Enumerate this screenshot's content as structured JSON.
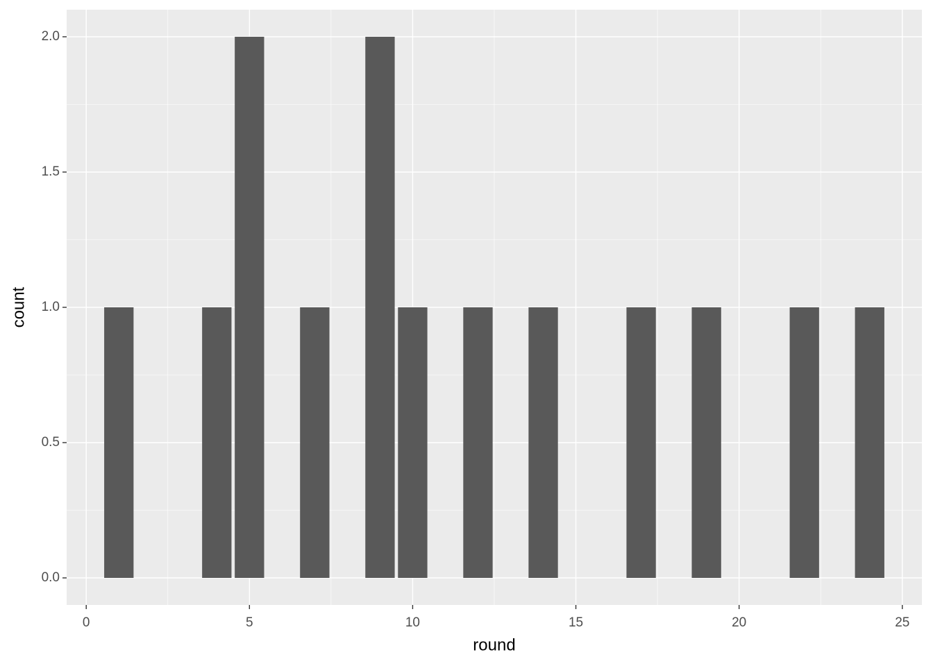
{
  "chart_data": {
    "type": "bar",
    "x": [
      1,
      4,
      5,
      7,
      9,
      10,
      12,
      14,
      17,
      19,
      22,
      24
    ],
    "values": [
      1,
      1,
      2,
      1,
      2,
      1,
      1,
      1,
      1,
      1,
      1,
      1
    ],
    "color": "#595959",
    "x_label": "round",
    "y_label": "count",
    "xlim": [
      -0.6,
      25.6
    ],
    "xticks": [
      0,
      5,
      10,
      15,
      20,
      25
    ],
    "ylim": [
      -0.1,
      2.1
    ],
    "yticks": [
      {
        "value": 0,
        "label": "0.0"
      },
      0.5,
      {
        "value": 1,
        "label": "1.0"
      },
      1.5,
      {
        "value": 2,
        "label": "2.0"
      }
    ],
    "grid": true
  }
}
